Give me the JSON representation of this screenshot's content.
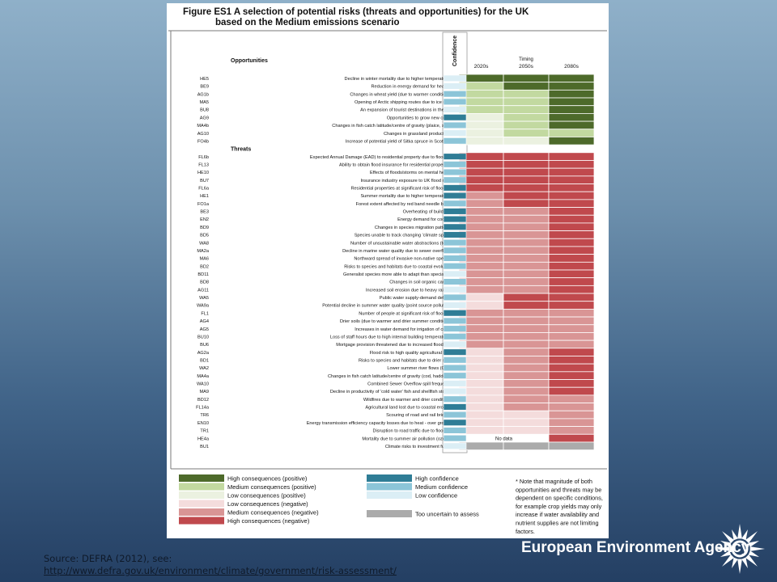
{
  "figure": {
    "title_line1": "Figure ES1  A selection of potential risks (threats and opportunities) for the UK",
    "title_line2": "based on the Medium emissions scenario",
    "opportunities_heading": "Opportunities",
    "threats_heading": "Threats",
    "timing_heading": "Timing",
    "confidence_heading": "Confidence",
    "period_labels": [
      "2020s",
      "2050s",
      "2080s"
    ],
    "no_data_label": "No data",
    "footnote": [
      "* Note that magnitude of both",
      "opportunities and threats may be",
      "dependent on specific conditions,",
      "for example crop yields may only",
      "increase if water availability and",
      "nutrient supplies are not limiting",
      "factors."
    ]
  },
  "colors": {
    "H+": "#4d6a2a",
    "M+": "#c2d9a0",
    "L+": "#ebf1e0",
    "L-": "#f4dcdc",
    "M-": "#d99595",
    "H-": "#c0494d",
    "U": "#ababab",
    "ND": "#ffffff",
    "CH": "#2f7d96",
    "CM": "#8cc5d8",
    "CL": "#dbeef5"
  },
  "legend": {
    "consequence": [
      {
        "key": "H+",
        "label": "High consequences (positive)"
      },
      {
        "key": "M+",
        "label": "Medium consequences (positive)"
      },
      {
        "key": "L+",
        "label": "Low consequences (positive)"
      },
      {
        "key": "L-",
        "label": "Low consequences (negative)"
      },
      {
        "key": "M-",
        "label": "Medium consequences (negative)"
      },
      {
        "key": "H-",
        "label": "High consequences (negative)"
      }
    ],
    "confidence": [
      {
        "key": "CH",
        "label": "High confidence"
      },
      {
        "key": "CM",
        "label": "Medium confidence"
      },
      {
        "key": "CL",
        "label": "Low confidence"
      },
      {
        "key": "U",
        "label": "Too uncertain to assess"
      }
    ]
  },
  "chart_data": {
    "type": "heatmap",
    "columns": [
      "2020s",
      "2050s",
      "2080s",
      "Confidence"
    ],
    "opportunities": [
      {
        "code": "HE5",
        "label": "Decline in winter mortality due to higher temperatures",
        "timing": [
          "H+",
          "H+",
          "H+"
        ],
        "confidence": "CL"
      },
      {
        "code": "BE9",
        "label": "Reduction in energy demand for heating",
        "timing": [
          "M+",
          "H+",
          "H+"
        ],
        "confidence": "CL"
      },
      {
        "code": "AG1b",
        "label": "Changes in wheat yield (due to warmer conditions)",
        "timing": [
          "M+",
          "M+",
          "H+"
        ],
        "confidence": "CM"
      },
      {
        "code": "MA5",
        "label": "Opening of Arctic shipping routes due to ice melt",
        "timing": [
          "M+",
          "M+",
          "H+"
        ],
        "confidence": "CM"
      },
      {
        "code": "BU8",
        "label": "An expansion of tourist destinations in the UK",
        "timing": [
          "M+",
          "M+",
          "H+"
        ],
        "confidence": "CL"
      },
      {
        "code": "AG9",
        "label": "Opportunities to grow new crops",
        "timing": [
          "L+",
          "M+",
          "H+"
        ],
        "confidence": "CH"
      },
      {
        "code": "MA4b",
        "label": "Changes in fish catch latitude/centre of gravity (plaice, sole)",
        "timing": [
          "L+",
          "M+",
          "H+"
        ],
        "confidence": "CM"
      },
      {
        "code": "AG10",
        "label": "Changes in grassland productivity",
        "timing": [
          "L+",
          "M+",
          "M+"
        ],
        "confidence": "CL"
      },
      {
        "code": "FO4b",
        "label": "Increase of potential yield of Sitka spruce in Scotland",
        "timing": [
          "L+",
          "L+",
          "H+"
        ],
        "confidence": "CM"
      }
    ],
    "threats": [
      {
        "code": "FL6b",
        "label": "Expected Annual Damage (EAD) to residential property due to flooding",
        "timing": [
          "H-",
          "H-",
          "H-"
        ],
        "confidence": "CH"
      },
      {
        "code": "FL13",
        "label": "Ability to obtain flood insurance for residential properties",
        "timing": [
          "H-",
          "H-",
          "H-"
        ],
        "confidence": "CM"
      },
      {
        "code": "HE10",
        "label": "Effects of floods/storms on mental health",
        "timing": [
          "H-",
          "H-",
          "H-"
        ],
        "confidence": "CM"
      },
      {
        "code": "BU7",
        "label": "Insurance industry exposure to UK flood risks",
        "timing": [
          "H-",
          "H-",
          "H-"
        ],
        "confidence": "CM"
      },
      {
        "code": "FL6a",
        "label": "Residential properties at significant risk of flooding",
        "timing": [
          "H-",
          "H-",
          "H-"
        ],
        "confidence": "CH"
      },
      {
        "code": "HE1",
        "label": "Summer mortality due to higher temperatures",
        "timing": [
          "M-",
          "H-",
          "H-"
        ],
        "confidence": "CH"
      },
      {
        "code": "FO1a",
        "label": "Forest extent affected by red band needle blight",
        "timing": [
          "M-",
          "H-",
          "H-"
        ],
        "confidence": "CM"
      },
      {
        "code": "BE3",
        "label": "Overheating of buildings",
        "timing": [
          "M-",
          "M-",
          "H-"
        ],
        "confidence": "CH"
      },
      {
        "code": "EN2",
        "label": "Energy demand for cooling",
        "timing": [
          "M-",
          "M-",
          "H-"
        ],
        "confidence": "CH"
      },
      {
        "code": "BD9",
        "label": "Changes in species migration patterns",
        "timing": [
          "M-",
          "M-",
          "H-"
        ],
        "confidence": "CH"
      },
      {
        "code": "BD5",
        "label": "Species unable to track changing 'climate space'",
        "timing": [
          "M-",
          "M-",
          "H-"
        ],
        "confidence": "CH"
      },
      {
        "code": "WA8",
        "label": "Number of unsustainable water abstractions (total)",
        "timing": [
          "M-",
          "M-",
          "H-"
        ],
        "confidence": "CM"
      },
      {
        "code": "MA2a",
        "label": "Decline in marine water quality due to sewer overflows",
        "timing": [
          "M-",
          "M-",
          "H-"
        ],
        "confidence": "CM"
      },
      {
        "code": "MA6",
        "label": "Northward spread of invasive non-native species",
        "timing": [
          "M-",
          "M-",
          "H-"
        ],
        "confidence": "CM"
      },
      {
        "code": "BD2",
        "label": "Risks to species and habitats due to coastal evolution",
        "timing": [
          "M-",
          "M-",
          "H-"
        ],
        "confidence": "CM"
      },
      {
        "code": "BD11",
        "label": "Generalist species more able to adapt than specialists",
        "timing": [
          "M-",
          "M-",
          "H-"
        ],
        "confidence": "CL"
      },
      {
        "code": "BD8",
        "label": "Changes in soil organic carbon",
        "timing": [
          "M-",
          "M-",
          "H-"
        ],
        "confidence": "CM"
      },
      {
        "code": "AG11",
        "label": "Increased soil erosion due to heavy rainfall",
        "timing": [
          "M-",
          "M-",
          "H-"
        ],
        "confidence": "CL"
      },
      {
        "code": "WA5",
        "label": "Public water supply-demand deficits",
        "timing": [
          "L-",
          "H-",
          "H-"
        ],
        "confidence": "CM"
      },
      {
        "code": "WA9a",
        "label": "Potential decline in summer water quality (point source pollution)",
        "timing": [
          "L-",
          "H-",
          "H-"
        ],
        "confidence": "CL"
      },
      {
        "code": "FL1",
        "label": "Number of people at significant risk of flooding",
        "timing": [
          "M-",
          "M-",
          "M-"
        ],
        "confidence": "CH"
      },
      {
        "code": "AG4",
        "label": "Drier soils (due to warmer and drier summer conditions)",
        "timing": [
          "M-",
          "M-",
          "M-"
        ],
        "confidence": "CM"
      },
      {
        "code": "AG5",
        "label": "Increases in water demand for irrigation of crops",
        "timing": [
          "M-",
          "M-",
          "M-"
        ],
        "confidence": "CM"
      },
      {
        "code": "BU10",
        "label": "Loss of staff hours due to high internal building temperatures",
        "timing": [
          "M-",
          "M-",
          "M-"
        ],
        "confidence": "CM"
      },
      {
        "code": "BU6",
        "label": "Mortgage provision threatened due to increased flood risk",
        "timing": [
          "M-",
          "M-",
          "M-"
        ],
        "confidence": "CL"
      },
      {
        "code": "AG2a",
        "label": "Flood risk to high quality agricultural land",
        "timing": [
          "L-",
          "M-",
          "H-"
        ],
        "confidence": "CH"
      },
      {
        "code": "BD1",
        "label": "Risks to species and habitats due to drier soils",
        "timing": [
          "L-",
          "M-",
          "H-"
        ],
        "confidence": "CM"
      },
      {
        "code": "WA2",
        "label": "Lower summer river flows (Q95)",
        "timing": [
          "L-",
          "M-",
          "H-"
        ],
        "confidence": "CM"
      },
      {
        "code": "MA4a",
        "label": "Changes in fish catch latitude/centre of gravity (cod, haddock)",
        "timing": [
          "L-",
          "M-",
          "H-"
        ],
        "confidence": "CM"
      },
      {
        "code": "WA10",
        "label": "Combined Sewer Overflow spill frequency",
        "timing": [
          "L-",
          "M-",
          "H-"
        ],
        "confidence": "CL"
      },
      {
        "code": "MA9",
        "label": "Decline in productivity of 'cold water' fish and shellfish stocks",
        "timing": [
          "L-",
          "M-",
          "H-"
        ],
        "confidence": "CL"
      },
      {
        "code": "BD12",
        "label": "Wildfires due to warmer and drier conditions",
        "timing": [
          "L-",
          "M-",
          "M-"
        ],
        "confidence": "CM"
      },
      {
        "code": "FL14a",
        "label": "Agricultural land lost due to coastal erosion",
        "timing": [
          "L-",
          "M-",
          "M-"
        ],
        "confidence": "CH"
      },
      {
        "code": "TR6",
        "label": "Scouring of road and rail bridges",
        "timing": [
          "L-",
          "L-",
          "M-"
        ],
        "confidence": "CM"
      },
      {
        "code": "EN10",
        "label": "Energy transmission efficiency capacity losses due to heat - over ground",
        "timing": [
          "L-",
          "L-",
          "M-"
        ],
        "confidence": "CH"
      },
      {
        "code": "TR1",
        "label": "Disruption to road traffic due to flooding",
        "timing": [
          "L-",
          "L-",
          "M-"
        ],
        "confidence": "CM"
      },
      {
        "code": "HE4a",
        "label": "Mortality due to summer air pollution (ozone)",
        "timing": [
          "ND",
          "ND",
          "H-"
        ],
        "confidence": "CM"
      },
      {
        "code": "BU1",
        "label": "Climate risks to investment funds",
        "timing": [
          "U",
          "U",
          "U"
        ],
        "confidence": "CL"
      }
    ]
  },
  "source": {
    "line1": "Source: DEFRA (2012), see:",
    "link": "http://www.defra.gov.uk/environment/climate/government/risk-assessment/"
  },
  "agency_name": "European Environment Agency"
}
